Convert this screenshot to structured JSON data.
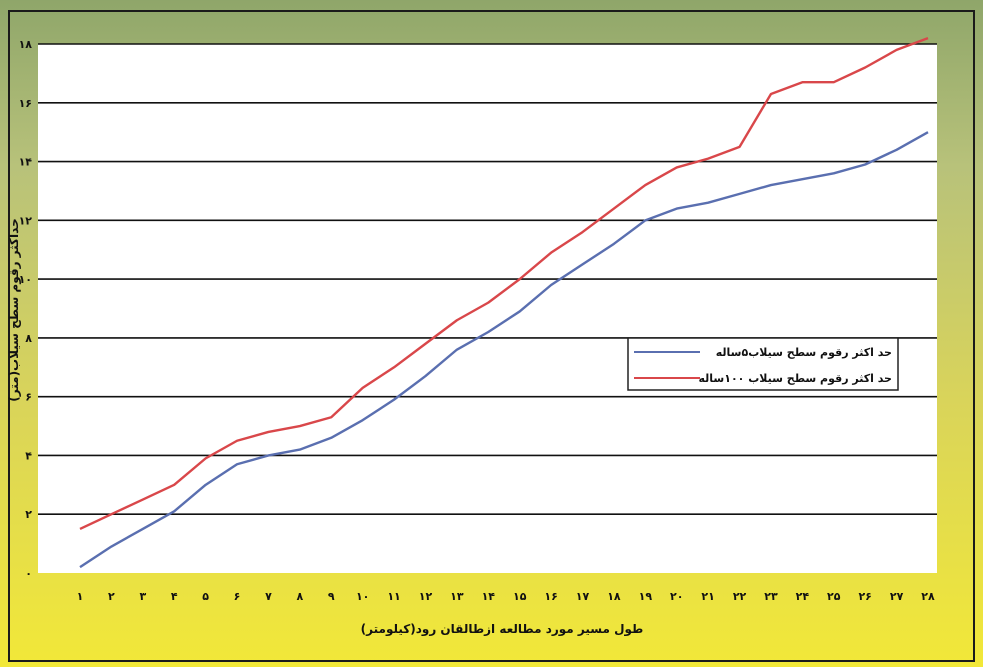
{
  "chart_data": {
    "type": "line",
    "xlabel": "طول مسیر مورد مطالعه ازطالقان رود(کیلومتر)",
    "ylabel": "حداکثر رقوم سطح سیلاب(متر)",
    "ylim": [
      0,
      18
    ],
    "xlim": [
      1,
      28
    ],
    "grid": true,
    "legend_position": "center-right",
    "x": [
      1,
      2,
      3,
      4,
      5,
      6,
      7,
      8,
      9,
      10,
      11,
      12,
      13,
      14,
      15,
      16,
      17,
      18,
      19,
      20,
      21,
      22,
      23,
      24,
      25,
      26,
      27,
      28
    ],
    "x_tick_labels": [
      "۱",
      "۲",
      "۳",
      "۴",
      "۵",
      "۶",
      "۷",
      "۸",
      "۹",
      "۱۰",
      "۱۱",
      "۱۲",
      "۱۳",
      "۱۴",
      "۱۵",
      "۱۶",
      "۱۷",
      "۱۸",
      "۱۹",
      "۲۰",
      "۲۱",
      "۲۲",
      "۲۳",
      "۲۴",
      "۲۵",
      "۲۶",
      "۲۷",
      "۲۸"
    ],
    "y_ticks": [
      0,
      2,
      4,
      6,
      8,
      10,
      12,
      14,
      16,
      18
    ],
    "y_tick_labels": [
      "۰",
      "۲",
      "۴",
      "۶",
      "۸",
      "۱۰",
      "۱۲",
      "۱۴",
      "۱۶",
      "۱۸"
    ],
    "series": [
      {
        "name": "حد اکثر رقوم سطح سیلاب۵ساله",
        "color": "#5a6fb0",
        "values": [
          0.2,
          0.9,
          1.5,
          2.1,
          3.0,
          3.7,
          4.0,
          4.2,
          4.6,
          5.2,
          5.9,
          6.7,
          7.6,
          8.2,
          8.9,
          9.8,
          10.5,
          11.2,
          12.0,
          12.4,
          12.6,
          12.9,
          13.2,
          13.4,
          13.6,
          13.9,
          14.4,
          15.0
        ]
      },
      {
        "name": "حد اکثر رقوم سطح سیلاب ۱۰۰ساله",
        "color": "#d9474a",
        "values": [
          1.5,
          2.0,
          2.5,
          3.0,
          3.9,
          4.5,
          4.8,
          5.0,
          5.3,
          6.3,
          7.0,
          7.8,
          8.6,
          9.2,
          10.0,
          10.9,
          11.6,
          12.4,
          13.2,
          13.8,
          14.1,
          14.5,
          16.3,
          16.7,
          16.7,
          17.2,
          17.8,
          18.2
        ]
      }
    ]
  }
}
